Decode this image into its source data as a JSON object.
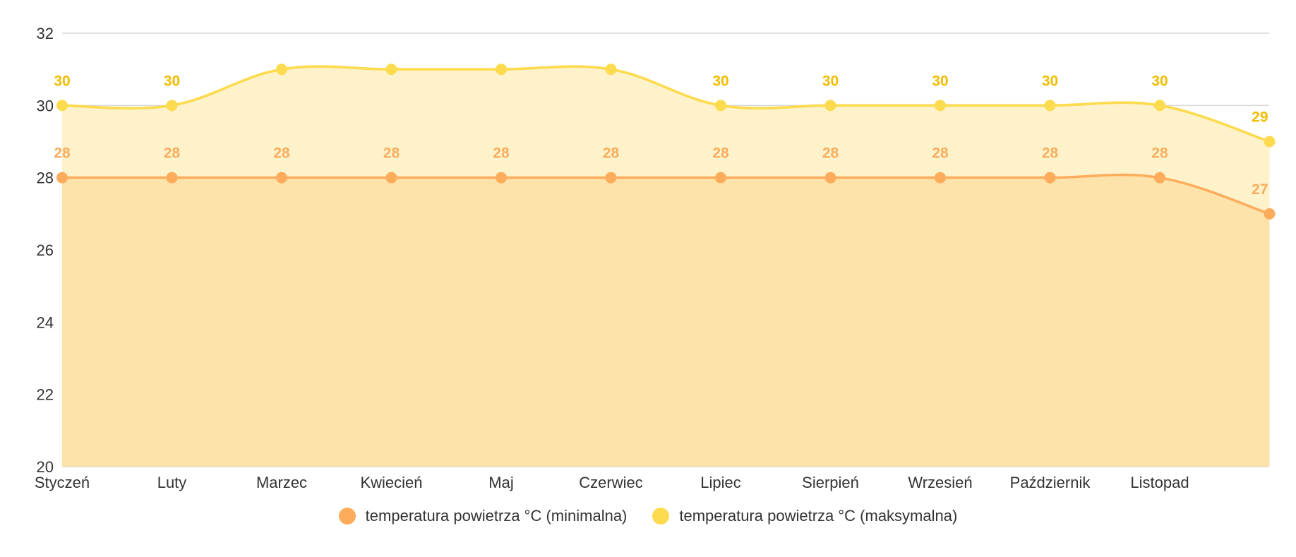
{
  "colors": {
    "min_line": "#fdac5c",
    "min_fill": "#fde3a9",
    "max_line": "#fddb4f",
    "max_fill": "#fef2cb",
    "max_label": "#f2bd00",
    "min_label": "#f9ad5e",
    "grid": "#d9d9d9",
    "axis_text": "#333333"
  },
  "chart_data": {
    "type": "area",
    "categories": [
      "Styczeń",
      "Luty",
      "Marzec",
      "Kwiecień",
      "Maj",
      "Czerwiec",
      "Lipiec",
      "Sierpień",
      "Wrzesień",
      "Październik",
      "Listopad",
      ""
    ],
    "ylim": [
      20,
      32
    ],
    "yticks": [
      20,
      22,
      24,
      26,
      28,
      30,
      32
    ],
    "grid": true,
    "legend_position": "bottom",
    "series": [
      {
        "name": "temperatura powietrza °C (minimalna)",
        "values": [
          28,
          28,
          28,
          28,
          28,
          28,
          28,
          28,
          28,
          28,
          28,
          27
        ],
        "labels": [
          "28",
          "28",
          "28",
          "28",
          "28",
          "28",
          "28",
          "28",
          "28",
          "28",
          "28",
          "27"
        ],
        "color_key": "min"
      },
      {
        "name": "temperatura powietrza °C (maksymalna)",
        "values": [
          30,
          30,
          31,
          31,
          31,
          31,
          30,
          30,
          30,
          30,
          30,
          29
        ],
        "labels": [
          "30",
          "30",
          "",
          "",
          "",
          "",
          "30",
          "30",
          "30",
          "30",
          "30",
          "29"
        ],
        "color_key": "max"
      }
    ]
  },
  "legend": {
    "min_label": "temperatura powietrza °C (minimalna)",
    "max_label": "temperatura powietrza °C (maksymalna)"
  }
}
